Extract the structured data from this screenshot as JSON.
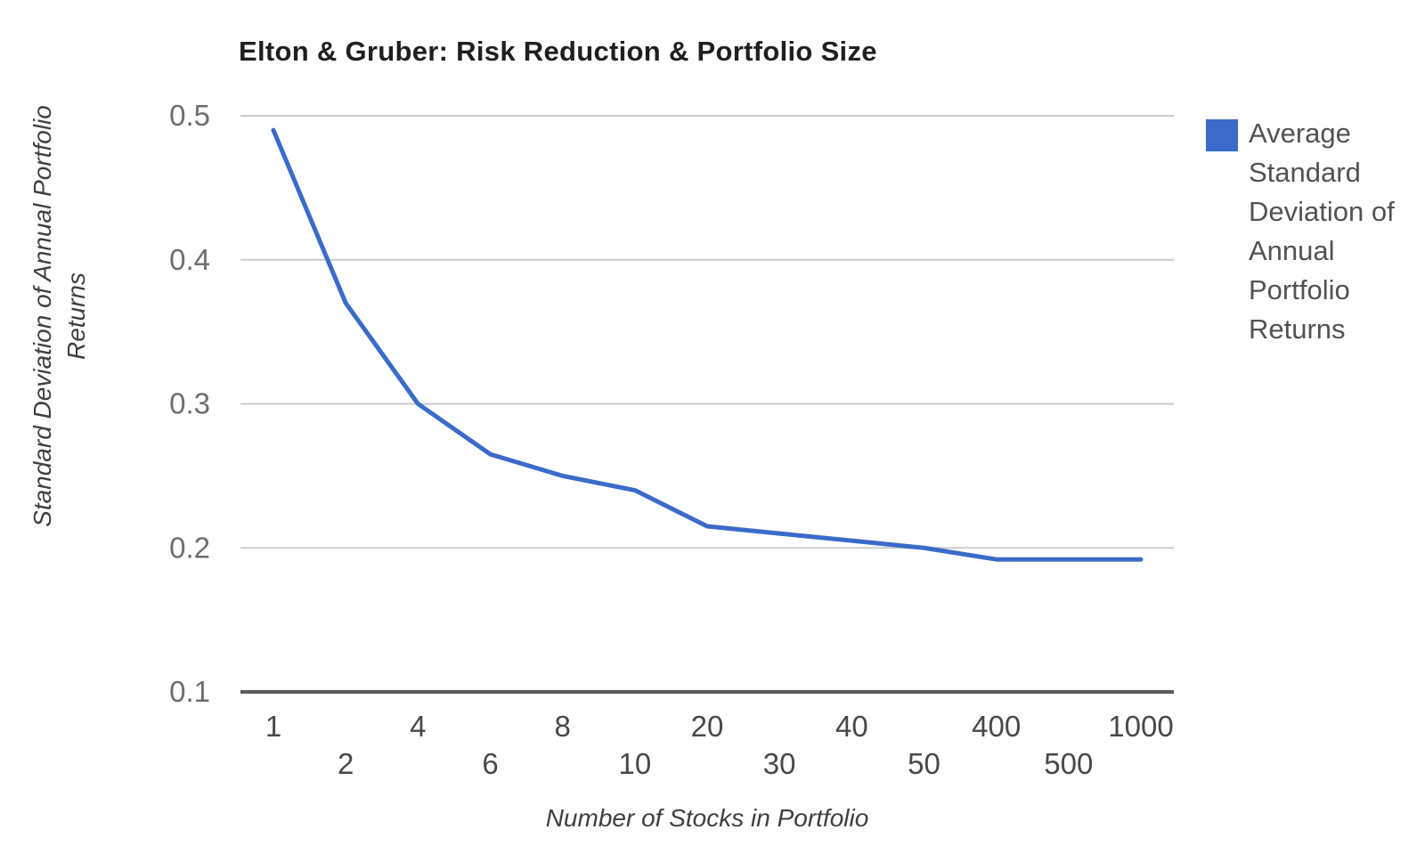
{
  "chart_data": {
    "type": "line",
    "title": "Elton & Gruber: Risk Reduction & Portfolio Size",
    "xlabel": "Number of Stocks in Portfolio",
    "ylabel": "Standard Deviation of Annual Portfolio Returns",
    "ylabel_lines": [
      "Standard Deviation of Annual Portfolio",
      "Returns"
    ],
    "categories": [
      "1",
      "2",
      "4",
      "6",
      "8",
      "10",
      "20",
      "30",
      "40",
      "50",
      "400",
      "500",
      "1000"
    ],
    "series": [
      {
        "name": "Average Standard Deviation of Annual Portfolio Returns",
        "values": [
          0.49,
          0.37,
          0.3,
          0.265,
          0.25,
          0.24,
          0.215,
          0.21,
          0.205,
          0.2,
          0.192,
          0.192,
          0.192
        ],
        "color": "#3a6bc9"
      }
    ],
    "y_ticks": [
      0.1,
      0.2,
      0.3,
      0.4,
      0.5
    ],
    "ylim": [
      0.1,
      0.5
    ],
    "x_axis_style": "categorical-staggered-labels",
    "grid": true,
    "legend_position": "right",
    "gridline_color": "#cbcbcb",
    "axis_line_color": "#5c5c5c",
    "background_color": "#ffffff"
  }
}
